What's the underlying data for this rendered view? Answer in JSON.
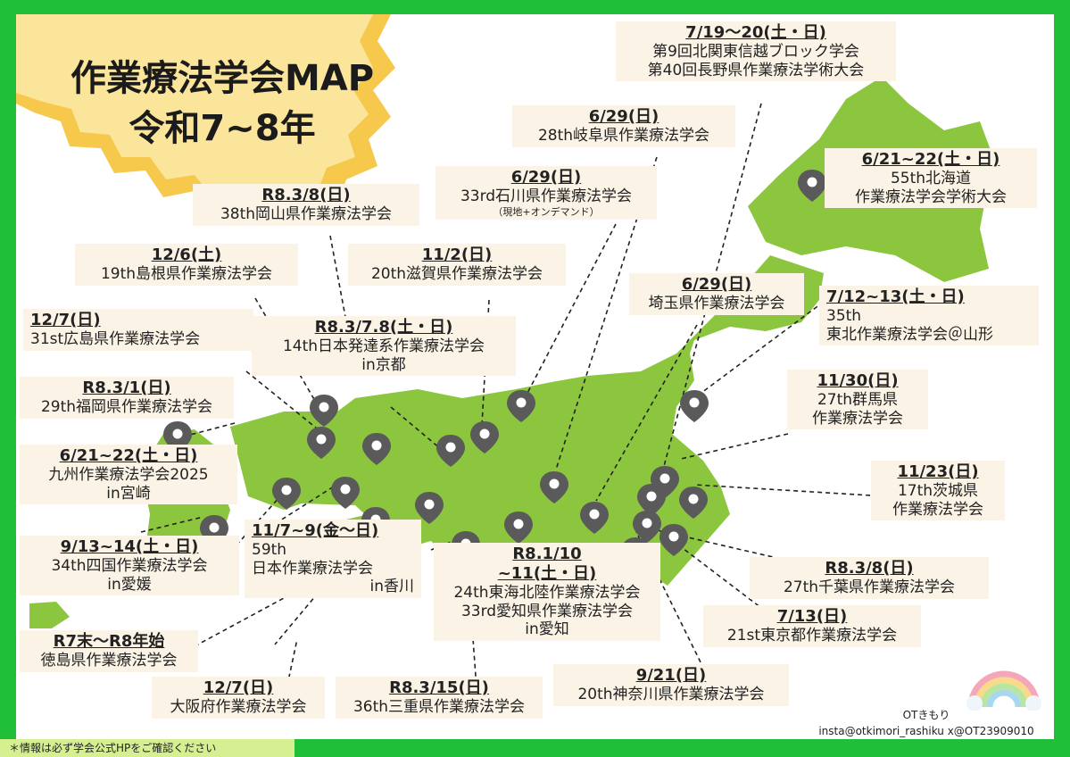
{
  "title": {
    "line1": "作業療法学会MAP",
    "line2": "令和7~8年"
  },
  "events": {
    "e1": {
      "date": "7/19〜20(土・日)",
      "lines": [
        "第9回北関東信越ブロック学会",
        "第40回長野県作業療法学術大会"
      ]
    },
    "e2": {
      "date": "6/29(日)",
      "lines": [
        "28th岐阜県作業療法学会"
      ]
    },
    "e3": {
      "date": "6/29(日)",
      "lines": [
        "33rd石川県作業療法学会"
      ],
      "note": "（現地+オンデマンド）"
    },
    "e4": {
      "date": "6/21~22(土・日)",
      "lines": [
        "55th北海道",
        "作業療法学会学術大会"
      ]
    },
    "e5": {
      "date": "R8.3/8(日)",
      "lines": [
        "38th岡山県作業療法学会"
      ]
    },
    "e6": {
      "date": "12/6(土)",
      "lines": [
        "19th島根県作業療法学会"
      ]
    },
    "e7": {
      "date": "11/2(日)",
      "lines": [
        "20th滋賀県作業療法学会"
      ]
    },
    "e8": {
      "date": "6/29(日)",
      "lines": [
        "埼玉県作業療法学会"
      ]
    },
    "e9": {
      "date": "7/12~13(土・日)",
      "lines": [
        "35th",
        "東北作業療法学会＠山形"
      ]
    },
    "e10": {
      "date": "12/7(日)",
      "lines": [
        "31st広島県作業療法学会"
      ]
    },
    "e11": {
      "date": "R8.3/7.8(土・日)",
      "lines": [
        "14th日本発達系作業療法学会",
        "in京都"
      ]
    },
    "e12": {
      "date": "R8.3/1(日)",
      "lines": [
        "29th福岡県作業療法学会"
      ]
    },
    "e13": {
      "date": "11/30(日)",
      "lines": [
        "27th群馬県",
        "作業療法学会"
      ]
    },
    "e14": {
      "date": "6/21~22(土・日)",
      "lines": [
        "九州作業療法学会2025",
        "in宮崎"
      ]
    },
    "e15": {
      "date": "11/23(日)",
      "lines": [
        "17th茨城県",
        "作業療法学会"
      ]
    },
    "e16": {
      "date": "9/13~14(土・日)",
      "lines": [
        "34th四国作業療法学会",
        "in愛媛"
      ]
    },
    "e17": {
      "date": "11/7~9(金〜日)",
      "lines": [
        "59th",
        "日本作業療法学会",
        "in香川"
      ]
    },
    "e18": {
      "date": "R8.1/10",
      "lines": [
        "~11(土・日)",
        "24th東海北陸作業療法学会",
        "33rd愛知県作業療法学会",
        "in愛知"
      ]
    },
    "e19": {
      "date": "R8.3/8(日)",
      "lines": [
        "27th千葉県作業療法学会"
      ]
    },
    "e20": {
      "date": "7/13(日)",
      "lines": [
        "21st東京都作業療法学会"
      ]
    },
    "e21": {
      "date": "R7末〜R8年始",
      "lines": [
        "徳島県作業療法学会"
      ]
    },
    "e22": {
      "date": "12/7(日)",
      "lines": [
        "大阪府作業療法学会"
      ]
    },
    "e23": {
      "date": "R8.3/15(日)",
      "lines": [
        "36th三重県作業療法学会"
      ]
    },
    "e24": {
      "date": "9/21(日)",
      "lines": [
        "20th神奈川県作業療法学会"
      ]
    }
  },
  "credit": {
    "name": "OTきもり",
    "contact": "insta@otkimori_rashiku x@OT23909010"
  },
  "footer": "＊情報は必ず学会公式HPをご確認ください",
  "colors": {
    "frame": "#1fbf3a",
    "land": "#8cc63f",
    "label_bg": "#fbf4e6",
    "pin": "#555555",
    "sun": "#f9d677"
  }
}
